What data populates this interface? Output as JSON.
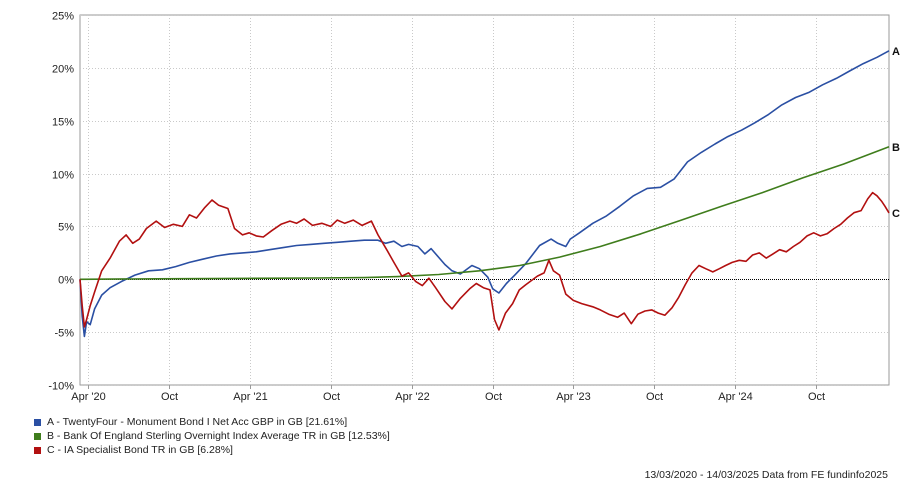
{
  "chart_data": {
    "type": "line",
    "xlabel": "",
    "ylabel": "",
    "x_range": [
      "2020-03-13",
      "2025-03-14"
    ],
    "ylim": [
      -10,
      25
    ],
    "yticks": [
      -10,
      -5,
      0,
      5,
      10,
      15,
      20,
      25
    ],
    "ytick_labels": [
      "-10%",
      "-5%",
      "0%",
      "5%",
      "10%",
      "15%",
      "20%",
      "25%"
    ],
    "xticks": [
      {
        "date": "2020-04-01",
        "label": "Apr '20"
      },
      {
        "date": "2020-10-01",
        "label": "Oct"
      },
      {
        "date": "2021-04-01",
        "label": "Apr '21"
      },
      {
        "date": "2021-10-01",
        "label": "Oct"
      },
      {
        "date": "2022-04-01",
        "label": "Apr '22"
      },
      {
        "date": "2022-10-01",
        "label": "Oct"
      },
      {
        "date": "2023-04-01",
        "label": "Apr '23"
      },
      {
        "date": "2023-10-01",
        "label": "Oct"
      },
      {
        "date": "2024-04-01",
        "label": "Apr '24"
      },
      {
        "date": "2024-10-01",
        "label": "Oct"
      }
    ],
    "grid": true,
    "legend_position": "bottom-left",
    "series": [
      {
        "name": "A - TwentyFour - Monument Bond I Net Acc GBP in GB [21.61%]",
        "end_label": "A",
        "color": "#2a4fa3",
        "points": [
          [
            "2020-03-13",
            0
          ],
          [
            "2020-03-18",
            -3.5
          ],
          [
            "2020-03-23",
            -5.4
          ],
          [
            "2020-03-28",
            -4.0
          ],
          [
            "2020-04-05",
            -4.3
          ],
          [
            "2020-04-15",
            -2.8
          ],
          [
            "2020-05-01",
            -1.5
          ],
          [
            "2020-05-20",
            -0.8
          ],
          [
            "2020-06-15",
            -0.2
          ],
          [
            "2020-07-15",
            0.4
          ],
          [
            "2020-08-15",
            0.8
          ],
          [
            "2020-09-15",
            0.9
          ],
          [
            "2020-10-15",
            1.2
          ],
          [
            "2020-11-15",
            1.6
          ],
          [
            "2020-12-15",
            1.9
          ],
          [
            "2021-01-15",
            2.2
          ],
          [
            "2021-02-15",
            2.4
          ],
          [
            "2021-03-15",
            2.5
          ],
          [
            "2021-04-15",
            2.6
          ],
          [
            "2021-05-15",
            2.8
          ],
          [
            "2021-06-15",
            3.0
          ],
          [
            "2021-07-15",
            3.2
          ],
          [
            "2021-08-15",
            3.3
          ],
          [
            "2021-09-15",
            3.4
          ],
          [
            "2021-10-15",
            3.5
          ],
          [
            "2021-11-15",
            3.6
          ],
          [
            "2021-12-15",
            3.7
          ],
          [
            "2022-01-15",
            3.7
          ],
          [
            "2022-02-01",
            3.4
          ],
          [
            "2022-02-20",
            3.6
          ],
          [
            "2022-03-10",
            3.1
          ],
          [
            "2022-03-25",
            3.3
          ],
          [
            "2022-04-15",
            3.1
          ],
          [
            "2022-05-01",
            2.4
          ],
          [
            "2022-05-15",
            2.9
          ],
          [
            "2022-06-15",
            1.4
          ],
          [
            "2022-07-01",
            0.8
          ],
          [
            "2022-07-20",
            0.5
          ],
          [
            "2022-08-15",
            1.3
          ],
          [
            "2022-09-01",
            1.0
          ],
          [
            "2022-09-20",
            0.2
          ],
          [
            "2022-10-01",
            -0.9
          ],
          [
            "2022-10-15",
            -1.3
          ],
          [
            "2022-11-01",
            -0.4
          ],
          [
            "2022-11-20",
            0.4
          ],
          [
            "2022-12-15",
            1.5
          ],
          [
            "2023-01-15",
            3.2
          ],
          [
            "2023-02-10",
            3.8
          ],
          [
            "2023-02-25",
            3.4
          ],
          [
            "2023-03-15",
            3.1
          ],
          [
            "2023-03-25",
            3.8
          ],
          [
            "2023-04-15",
            4.4
          ],
          [
            "2023-05-15",
            5.3
          ],
          [
            "2023-06-15",
            6.0
          ],
          [
            "2023-07-15",
            6.9
          ],
          [
            "2023-08-15",
            7.9
          ],
          [
            "2023-09-15",
            8.6
          ],
          [
            "2023-10-15",
            8.7
          ],
          [
            "2023-11-15",
            9.5
          ],
          [
            "2023-12-15",
            11.1
          ],
          [
            "2024-01-15",
            12.0
          ],
          [
            "2024-02-15",
            12.8
          ],
          [
            "2024-03-15",
            13.5
          ],
          [
            "2024-04-15",
            14.1
          ],
          [
            "2024-05-15",
            14.8
          ],
          [
            "2024-06-15",
            15.6
          ],
          [
            "2024-07-15",
            16.5
          ],
          [
            "2024-08-15",
            17.2
          ],
          [
            "2024-09-15",
            17.7
          ],
          [
            "2024-10-15",
            18.4
          ],
          [
            "2024-11-15",
            19.0
          ],
          [
            "2024-12-15",
            19.7
          ],
          [
            "2025-01-15",
            20.4
          ],
          [
            "2025-02-15",
            21.0
          ],
          [
            "2025-03-14",
            21.61
          ]
        ]
      },
      {
        "name": "B - Bank Of England Sterling Overnight Index Average TR in GB [12.53%]",
        "end_label": "B",
        "color": "#3f7d1c",
        "points": [
          [
            "2020-03-13",
            0
          ],
          [
            "2020-09-01",
            0.05
          ],
          [
            "2021-03-01",
            0.08
          ],
          [
            "2021-09-01",
            0.12
          ],
          [
            "2021-12-15",
            0.16
          ],
          [
            "2022-03-01",
            0.25
          ],
          [
            "2022-06-01",
            0.45
          ],
          [
            "2022-09-01",
            0.8
          ],
          [
            "2022-12-01",
            1.3
          ],
          [
            "2023-03-01",
            2.1
          ],
          [
            "2023-06-01",
            3.1
          ],
          [
            "2023-09-01",
            4.3
          ],
          [
            "2023-12-01",
            5.6
          ],
          [
            "2024-03-01",
            6.9
          ],
          [
            "2024-06-01",
            8.2
          ],
          [
            "2024-09-01",
            9.6
          ],
          [
            "2024-12-01",
            10.9
          ],
          [
            "2025-03-14",
            12.53
          ]
        ]
      },
      {
        "name": "C - IA Specialist Bond TR in GB [6.28%]",
        "end_label": "C",
        "color": "#b21010",
        "points": [
          [
            "2020-03-13",
            0
          ],
          [
            "2020-03-18",
            -2.5
          ],
          [
            "2020-03-23",
            -4.5
          ],
          [
            "2020-03-28",
            -3.8
          ],
          [
            "2020-04-05",
            -2.5
          ],
          [
            "2020-04-15",
            -1.2
          ],
          [
            "2020-05-01",
            0.8
          ],
          [
            "2020-05-20",
            2.0
          ],
          [
            "2020-06-10",
            3.6
          ],
          [
            "2020-06-25",
            4.2
          ],
          [
            "2020-07-10",
            3.4
          ],
          [
            "2020-07-25",
            3.8
          ],
          [
            "2020-08-10",
            4.8
          ],
          [
            "2020-09-01",
            5.5
          ],
          [
            "2020-09-20",
            4.9
          ],
          [
            "2020-10-10",
            5.2
          ],
          [
            "2020-10-30",
            5.0
          ],
          [
            "2020-11-15",
            6.1
          ],
          [
            "2020-12-01",
            5.8
          ],
          [
            "2020-12-20",
            6.8
          ],
          [
            "2021-01-05",
            7.5
          ],
          [
            "2021-01-20",
            7.0
          ],
          [
            "2021-02-10",
            6.7
          ],
          [
            "2021-02-25",
            4.8
          ],
          [
            "2021-03-15",
            4.2
          ],
          [
            "2021-03-30",
            4.4
          ],
          [
            "2021-04-15",
            4.1
          ],
          [
            "2021-05-01",
            4.0
          ],
          [
            "2021-05-20",
            4.6
          ],
          [
            "2021-06-10",
            5.2
          ],
          [
            "2021-06-30",
            5.5
          ],
          [
            "2021-07-15",
            5.3
          ],
          [
            "2021-08-01",
            5.7
          ],
          [
            "2021-08-20",
            5.1
          ],
          [
            "2021-09-10",
            5.3
          ],
          [
            "2021-09-30",
            5.0
          ],
          [
            "2021-10-15",
            5.6
          ],
          [
            "2021-11-01",
            5.3
          ],
          [
            "2021-11-20",
            5.6
          ],
          [
            "2021-12-10",
            5.1
          ],
          [
            "2021-12-31",
            5.5
          ],
          [
            "2022-01-15",
            4.2
          ],
          [
            "2022-02-05",
            2.7
          ],
          [
            "2022-02-20",
            1.6
          ],
          [
            "2022-03-10",
            0.3
          ],
          [
            "2022-03-25",
            0.6
          ],
          [
            "2022-04-10",
            -0.2
          ],
          [
            "2022-04-25",
            -0.6
          ],
          [
            "2022-05-10",
            0.1
          ],
          [
            "2022-05-25",
            -0.8
          ],
          [
            "2022-06-15",
            -2.1
          ],
          [
            "2022-07-01",
            -2.8
          ],
          [
            "2022-07-20",
            -1.8
          ],
          [
            "2022-08-10",
            -0.9
          ],
          [
            "2022-08-25",
            -0.4
          ],
          [
            "2022-09-10",
            -0.8
          ],
          [
            "2022-09-25",
            -1.0
          ],
          [
            "2022-10-05",
            -3.8
          ],
          [
            "2022-10-15",
            -4.8
          ],
          [
            "2022-10-30",
            -3.2
          ],
          [
            "2022-11-15",
            -2.3
          ],
          [
            "2022-11-30",
            -1.0
          ],
          [
            "2022-12-15",
            -0.5
          ],
          [
            "2023-01-10",
            0.3
          ],
          [
            "2023-01-25",
            0.6
          ],
          [
            "2023-02-05",
            1.8
          ],
          [
            "2023-02-15",
            0.8
          ],
          [
            "2023-03-01",
            0.4
          ],
          [
            "2023-03-15",
            -1.4
          ],
          [
            "2023-04-01",
            -2.0
          ],
          [
            "2023-04-20",
            -2.3
          ],
          [
            "2023-05-15",
            -2.6
          ],
          [
            "2023-06-01",
            -2.9
          ],
          [
            "2023-06-20",
            -3.3
          ],
          [
            "2023-07-10",
            -3.6
          ],
          [
            "2023-07-25",
            -3.2
          ],
          [
            "2023-08-10",
            -4.2
          ],
          [
            "2023-08-25",
            -3.3
          ],
          [
            "2023-09-10",
            -3.0
          ],
          [
            "2023-09-25",
            -2.9
          ],
          [
            "2023-10-10",
            -3.2
          ],
          [
            "2023-10-25",
            -3.4
          ],
          [
            "2023-11-10",
            -2.7
          ],
          [
            "2023-11-25",
            -1.7
          ],
          [
            "2023-12-10",
            -0.5
          ],
          [
            "2023-12-25",
            0.6
          ],
          [
            "2024-01-10",
            1.3
          ],
          [
            "2024-01-25",
            1.0
          ],
          [
            "2024-02-10",
            0.7
          ],
          [
            "2024-02-25",
            1.0
          ],
          [
            "2024-03-10",
            1.3
          ],
          [
            "2024-03-25",
            1.6
          ],
          [
            "2024-04-10",
            1.8
          ],
          [
            "2024-04-25",
            1.7
          ],
          [
            "2024-05-10",
            2.3
          ],
          [
            "2024-05-25",
            2.5
          ],
          [
            "2024-06-10",
            2.0
          ],
          [
            "2024-06-25",
            2.4
          ],
          [
            "2024-07-10",
            2.8
          ],
          [
            "2024-07-25",
            2.6
          ],
          [
            "2024-08-10",
            3.1
          ],
          [
            "2024-08-25",
            3.5
          ],
          [
            "2024-09-10",
            4.1
          ],
          [
            "2024-09-25",
            4.4
          ],
          [
            "2024-10-10",
            4.1
          ],
          [
            "2024-10-25",
            4.3
          ],
          [
            "2024-11-10",
            4.8
          ],
          [
            "2024-11-25",
            5.2
          ],
          [
            "2024-12-10",
            5.8
          ],
          [
            "2024-12-25",
            6.3
          ],
          [
            "2025-01-10",
            6.5
          ],
          [
            "2025-01-25",
            7.6
          ],
          [
            "2025-02-05",
            8.2
          ],
          [
            "2025-02-15",
            7.9
          ],
          [
            "2025-02-25",
            7.4
          ],
          [
            "2025-03-05",
            6.9
          ],
          [
            "2025-03-14",
            6.28
          ]
        ]
      }
    ]
  },
  "footer_text": "13/03/2020 - 14/03/2025 Data from FE fundinfo2025"
}
